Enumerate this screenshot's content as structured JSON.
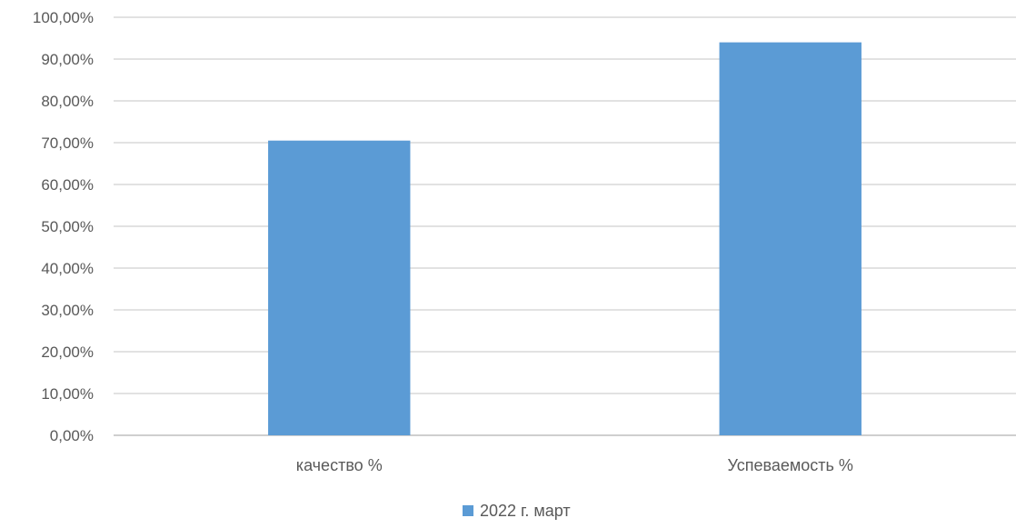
{
  "chart_data": {
    "type": "bar",
    "categories": [
      "качество %",
      "Успеваемость %"
    ],
    "series": [
      {
        "name": "2022 г. март",
        "values": [
          70.5,
          94.0
        ],
        "color": "#5b9bd5"
      }
    ],
    "ylim": [
      0,
      100
    ],
    "yticks": [
      "0,00%",
      "10,00%",
      "20,00%",
      "30,00%",
      "40,00%",
      "50,00%",
      "60,00%",
      "70,00%",
      "80,00%",
      "90,00%",
      "100,00%"
    ],
    "grid": true,
    "legend_position": "bottom",
    "title": "",
    "xlabel": "",
    "ylabel": ""
  }
}
